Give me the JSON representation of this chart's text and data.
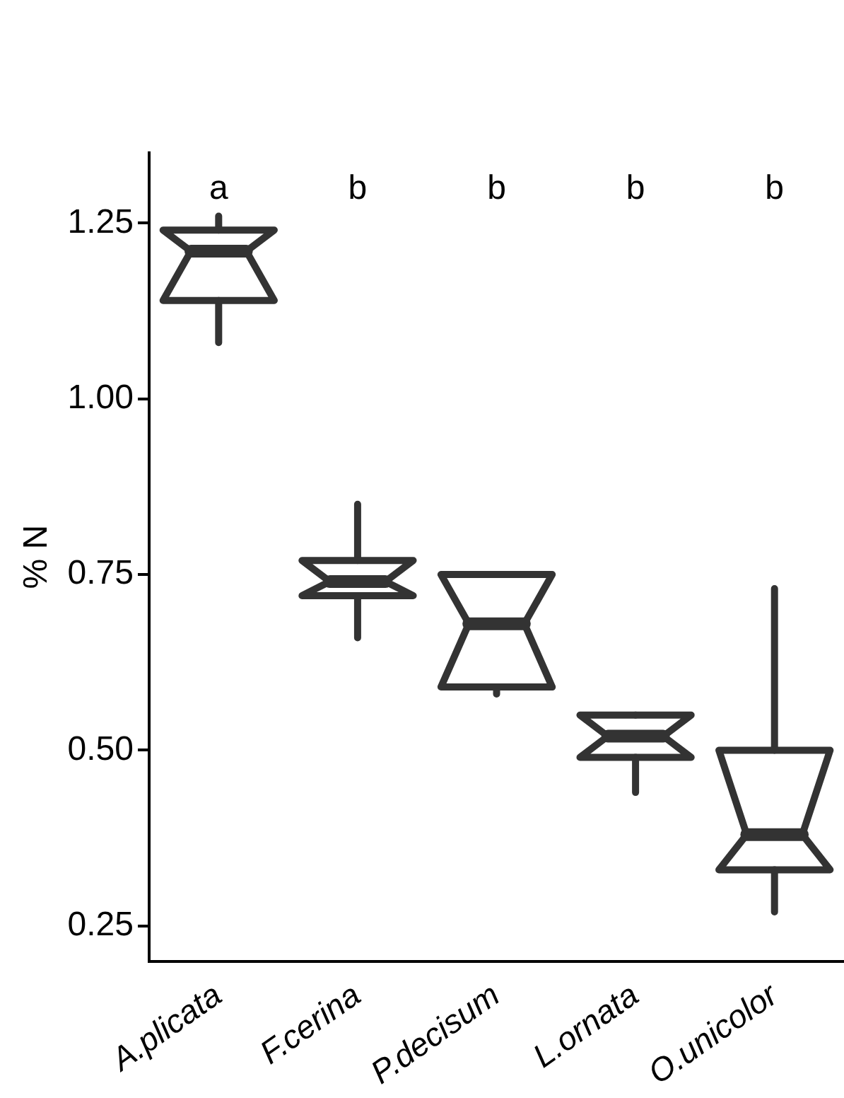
{
  "chart_data": {
    "type": "box",
    "ylabel": "% N",
    "categories": [
      "A.plicata",
      "F.cerina",
      "P.decisum",
      "L.ornata",
      "O.unicolor"
    ],
    "boxes": [
      {
        "low": 1.08,
        "q1": 1.14,
        "median": 1.21,
        "q3": 1.24,
        "high": 1.26
      },
      {
        "low": 0.66,
        "q1": 0.72,
        "median": 0.74,
        "q3": 0.77,
        "high": 0.85
      },
      {
        "low": 0.58,
        "q1": 0.59,
        "median": 0.68,
        "q3": 0.75,
        "high": 0.75
      },
      {
        "low": 0.44,
        "q1": 0.49,
        "median": 0.52,
        "q3": 0.55,
        "high": 0.55
      },
      {
        "low": 0.27,
        "q1": 0.33,
        "median": 0.38,
        "q3": 0.5,
        "high": 0.73
      }
    ],
    "color": "#333333",
    "ylim": [
      0.2,
      1.35
    ],
    "yticks": [
      {
        "value": 0.25,
        "label": "0.25"
      },
      {
        "value": 0.5,
        "label": "0.50"
      },
      {
        "value": 0.75,
        "label": "0.75"
      },
      {
        "value": 1,
        "label": "1.00"
      },
      {
        "value": 1.25,
        "label": "1.25"
      }
    ],
    "grid": false,
    "annotations": [
      "a",
      "b",
      "b",
      "b",
      "b"
    ]
  }
}
